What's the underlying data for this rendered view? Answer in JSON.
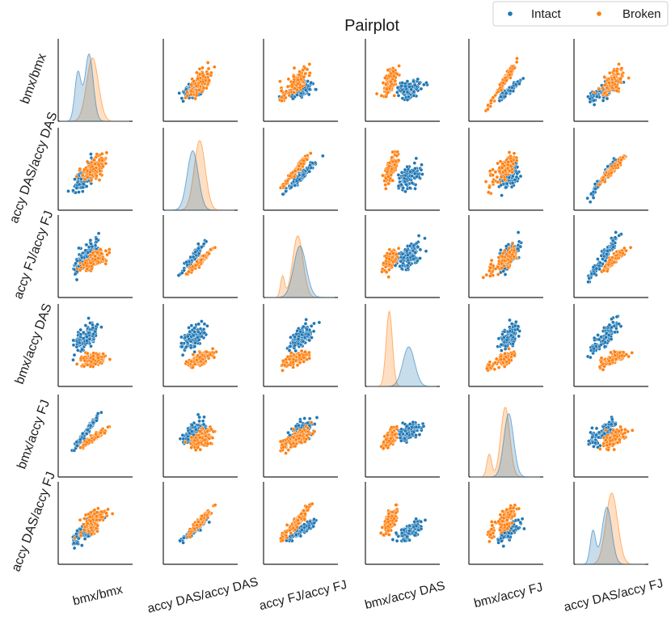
{
  "chart_data": {
    "type": "scatter",
    "subtype": "pairplot",
    "title": "Pairplot",
    "variables": [
      "bmx/bmx",
      "accy DAS/accy DAS",
      "accy FJ/accy FJ",
      "bmx/accy DAS",
      "bmx/accy FJ",
      "accy DAS/accy FJ"
    ],
    "series": [
      {
        "name": "Intact",
        "color": "#1f77b4"
      },
      {
        "name": "Broken",
        "color": "#ff7f0e"
      }
    ],
    "legend_position": "top-right",
    "diagonal": "kde",
    "off_diagonal": "scatter",
    "distributions": {
      "bmx/bmx": {
        "Intact": [
          {
            "mean": 0.26,
            "sd": 0.045,
            "w": 0.35
          },
          {
            "mean": 0.42,
            "sd": 0.06,
            "w": 0.65
          }
        ],
        "Broken": [
          {
            "mean": 0.47,
            "sd": 0.085,
            "w": 1.0
          }
        ]
      },
      "accy DAS/accy DAS": {
        "Intact": [
          {
            "mean": 0.4,
            "sd": 0.08,
            "w": 1.0
          }
        ],
        "Broken": [
          {
            "mean": 0.5,
            "sd": 0.08,
            "w": 1.0
          }
        ]
      },
      "accy FJ/accy FJ": {
        "Intact": [
          {
            "mean": 0.5,
            "sd": 0.09,
            "w": 1.0
          }
        ],
        "Broken": [
          {
            "mean": 0.25,
            "sd": 0.03,
            "w": 0.12
          },
          {
            "mean": 0.47,
            "sd": 0.075,
            "w": 0.88
          }
        ]
      },
      "bmx/accy DAS": {
        "Intact": [
          {
            "mean": 0.6,
            "sd": 0.085,
            "w": 1.0
          }
        ],
        "Broken": [
          {
            "mean": 0.32,
            "sd": 0.045,
            "w": 1.0
          }
        ]
      },
      "bmx/accy FJ": {
        "Intact": [
          {
            "mean": 0.55,
            "sd": 0.07,
            "w": 1.0
          }
        ],
        "Broken": [
          {
            "mean": 0.27,
            "sd": 0.035,
            "w": 0.15
          },
          {
            "mean": 0.5,
            "sd": 0.065,
            "w": 0.85
          }
        ]
      },
      "accy DAS/accy FJ": {
        "Intact": [
          {
            "mean": 0.25,
            "sd": 0.04,
            "w": 0.25
          },
          {
            "mean": 0.45,
            "sd": 0.07,
            "w": 0.75
          }
        ],
        "Broken": [
          {
            "mean": 0.52,
            "sd": 0.085,
            "w": 1.0
          }
        ]
      }
    },
    "kde_peak_height_fraction": {
      "Intact": [
        0.85,
        0.75,
        0.65,
        0.5,
        0.8,
        0.72
      ],
      "Broken": [
        0.8,
        0.88,
        0.78,
        0.95,
        0.88,
        0.9
      ]
    },
    "correlation_strength": [
      [
        1.0,
        0.5,
        0.6,
        0.35,
        0.95,
        0.55
      ],
      [
        0.5,
        1.0,
        0.95,
        0.55,
        0.5,
        0.95
      ],
      [
        0.6,
        0.95,
        1.0,
        0.5,
        0.55,
        0.9
      ],
      [
        0.35,
        0.55,
        0.5,
        1.0,
        0.6,
        0.6
      ],
      [
        0.95,
        0.5,
        0.55,
        0.6,
        1.0,
        0.55
      ],
      [
        0.55,
        0.95,
        0.9,
        0.6,
        0.55,
        1.0
      ]
    ],
    "points_per_class": 130,
    "ticks_shown": false
  }
}
